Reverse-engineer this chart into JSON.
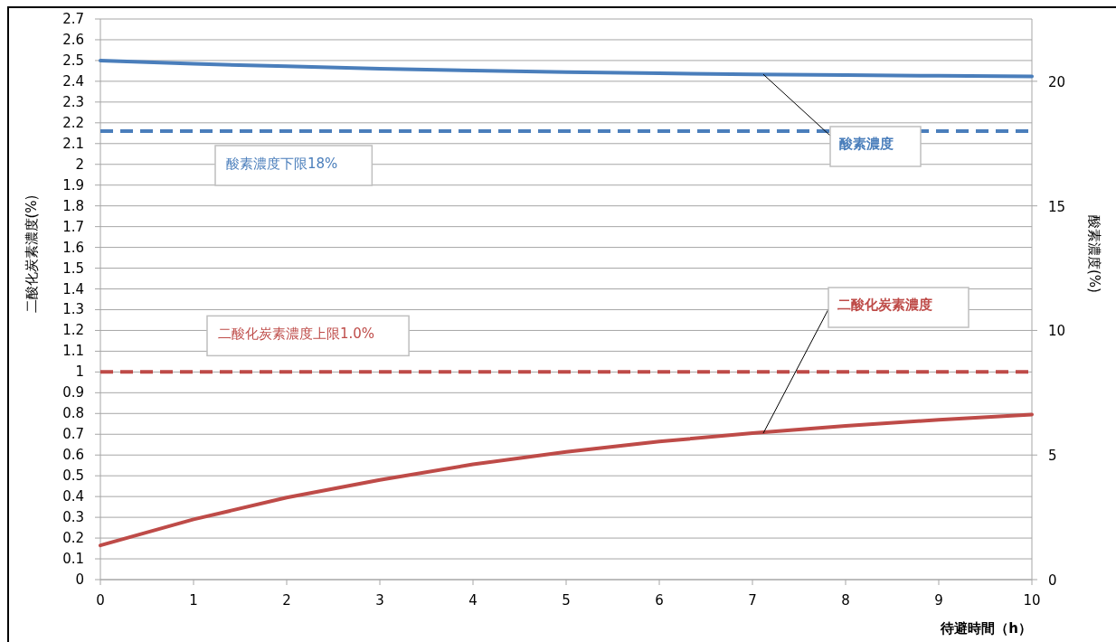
{
  "chart_data": {
    "type": "line",
    "xlabel": "待避時間（h）",
    "ylabel": "二酸化炭素濃度(%)",
    "y2label": "酸素濃度(%)",
    "x": [
      0,
      1,
      2,
      3,
      4,
      5,
      6,
      7,
      8,
      9,
      10
    ],
    "series": [
      {
        "name": "酸素濃度",
        "color": "#4a7ebb",
        "axis": "y2",
        "line_style": "solid",
        "values": [
          20.83,
          20.7,
          20.6,
          20.5,
          20.43,
          20.37,
          20.32,
          20.28,
          20.25,
          20.22,
          20.2
        ]
      },
      {
        "name": "二酸化炭素濃度",
        "color": "#be4b48",
        "line_style": "solid",
        "values": [
          0.165,
          0.29,
          0.395,
          0.48,
          0.555,
          0.615,
          0.665,
          0.705,
          0.74,
          0.77,
          0.795
        ]
      }
    ],
    "ref_lines": [
      {
        "axis": "y2",
        "value": 18,
        "label": "酸素濃度下限18%",
        "color": "#4a7ebb",
        "line_style": "dashed"
      },
      {
        "axis": "y",
        "value": 1,
        "label": "二酸化炭素濃度上限1.0%",
        "color": "#be4b48",
        "line_style": "dashed"
      }
    ],
    "xlim": [
      0,
      10
    ],
    "xticks": [
      0,
      1,
      2,
      3,
      4,
      5,
      6,
      7,
      8,
      9,
      10
    ],
    "ylim": [
      0,
      2.7
    ],
    "yticks": [
      0,
      0.1,
      0.2,
      0.3,
      0.4,
      0.5,
      0.6,
      0.7,
      0.8,
      0.9,
      1,
      1.1,
      1.2,
      1.3,
      1.4,
      1.5,
      1.6,
      1.7,
      1.8,
      1.9,
      2,
      2.1,
      2.2,
      2.3,
      2.4,
      2.5,
      2.6,
      2.7
    ],
    "y2lim": [
      0,
      22.5
    ],
    "y2ticks": [
      0,
      5,
      10,
      15,
      20
    ],
    "grid": "y"
  }
}
